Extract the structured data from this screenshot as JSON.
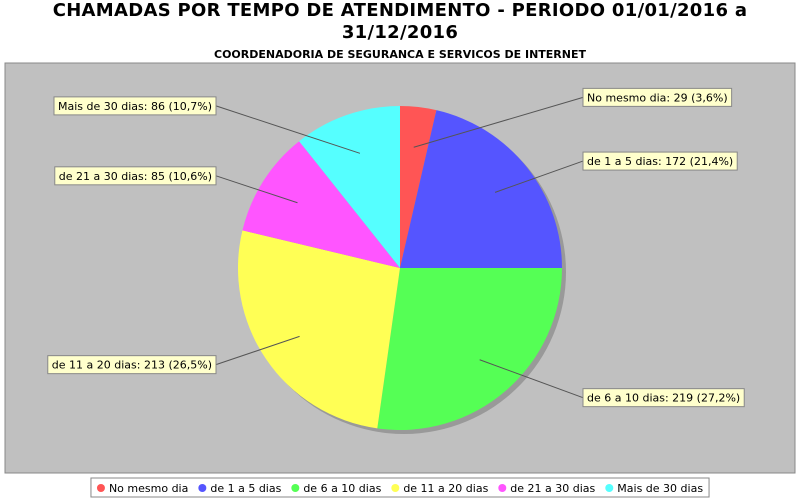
{
  "chart_data": {
    "type": "pie",
    "title": "CHAMADAS POR TEMPO DE ATENDIMENTO - PERIODO 01/01/2016 a 31/12/2016",
    "subtitle": "COORDENADORIA DE SEGURANCA E SERVICOS DE INTERNET",
    "categories": [
      "No mesmo dia",
      "de 1 a 5 dias",
      "de 6 a 10 dias",
      "de 11 a 20 dias",
      "de 21 a 30 dias",
      "Mais de 30 dias"
    ],
    "values": [
      29,
      172,
      219,
      213,
      85,
      86
    ],
    "value_labels": [
      "No mesmo dia: 29 (3,6%)",
      "de 1 a 5 dias: 172 (21,4%)",
      "de 6 a 10 dias: 219 (27,2%)",
      "de 11 a 20 dias: 213 (26,5%)",
      "de 21 a 30 dias: 85 (10,6%)",
      "Mais de 30 dias: 86 (10,7%)"
    ],
    "colors": [
      "#ff5555",
      "#5555ff",
      "#55ff55",
      "#ffff55",
      "#ff55ff",
      "#55ffff"
    ]
  }
}
